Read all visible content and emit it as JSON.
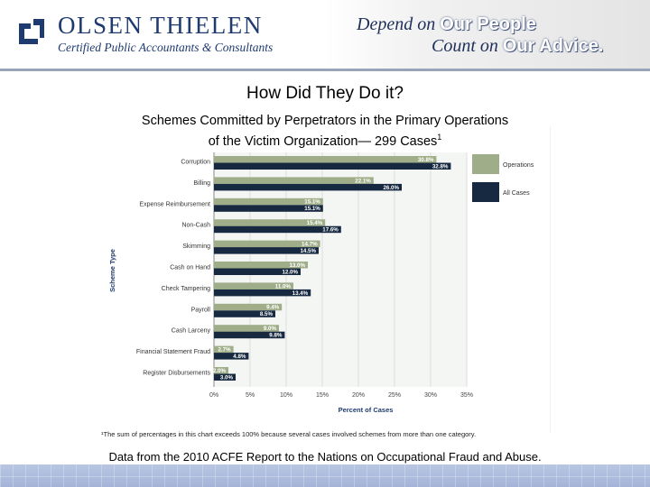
{
  "header": {
    "brand_name": "OLSEN THIELEN",
    "brand_subtitle": "Certified Public Accountants & Consultants",
    "tagline_line1_a": "Depend on",
    "tagline_line1_b": "Our People",
    "tagline_line2_a": "Count on",
    "tagline_line2_b": "Our Advice."
  },
  "slide": {
    "title": "How Did They Do it?",
    "subtitle_line1": "Schemes Committed by Perpetrators in the Primary Operations",
    "subtitle_line2": "of the Victim Organization— 299 Cases",
    "subtitle_sup": "1",
    "footnote": "¹The sum of percentages in this chart exceeds 100% because several cases involved schemes from more than one category.",
    "source": "Data from the 2010 ACFE Report to the Nations on Occupational Fraud and Abuse."
  },
  "colors": {
    "operations": "#9fae88",
    "all_cases": "#172940",
    "brand": "#1e3a6e"
  },
  "chart_data": {
    "type": "bar",
    "orientation": "horizontal",
    "ylabel": "Scheme Type",
    "xlabel": "Percent of Cases",
    "xlim": [
      0,
      35
    ],
    "xticks": [
      "0%",
      "5%",
      "10%",
      "15%",
      "20%",
      "25%",
      "30%",
      "35%"
    ],
    "grid": true,
    "legend": "right",
    "categories": [
      "Corruption",
      "Billing",
      "Expense Reimbursement",
      "Non-Cash",
      "Skimming",
      "Cash on Hand",
      "Check Tampering",
      "Payroll",
      "Cash Larceny",
      "Financial Statement Fraud",
      "Register Disbursements"
    ],
    "series": [
      {
        "name": "Operations",
        "values": [
          30.8,
          22.1,
          15.1,
          15.4,
          14.7,
          13.0,
          11.0,
          9.4,
          9.0,
          2.7,
          2.0
        ],
        "labels": [
          "30.8%",
          "22.1%",
          "15.1%",
          "15.4%",
          "14.7%",
          "13.0%",
          "11.0%",
          "9.4%",
          "9.0%",
          "2.7%",
          "2.0%"
        ]
      },
      {
        "name": "All Cases",
        "values": [
          32.8,
          26.0,
          15.1,
          17.6,
          14.5,
          12.0,
          13.4,
          8.5,
          9.8,
          4.8,
          3.0
        ],
        "labels": [
          "32.8%",
          "26.0%",
          "15.1%",
          "17.6%",
          "14.5%",
          "12.0%",
          "13.4%",
          "8.5%",
          "9.8%",
          "4.8%",
          "3.0%"
        ]
      }
    ]
  }
}
